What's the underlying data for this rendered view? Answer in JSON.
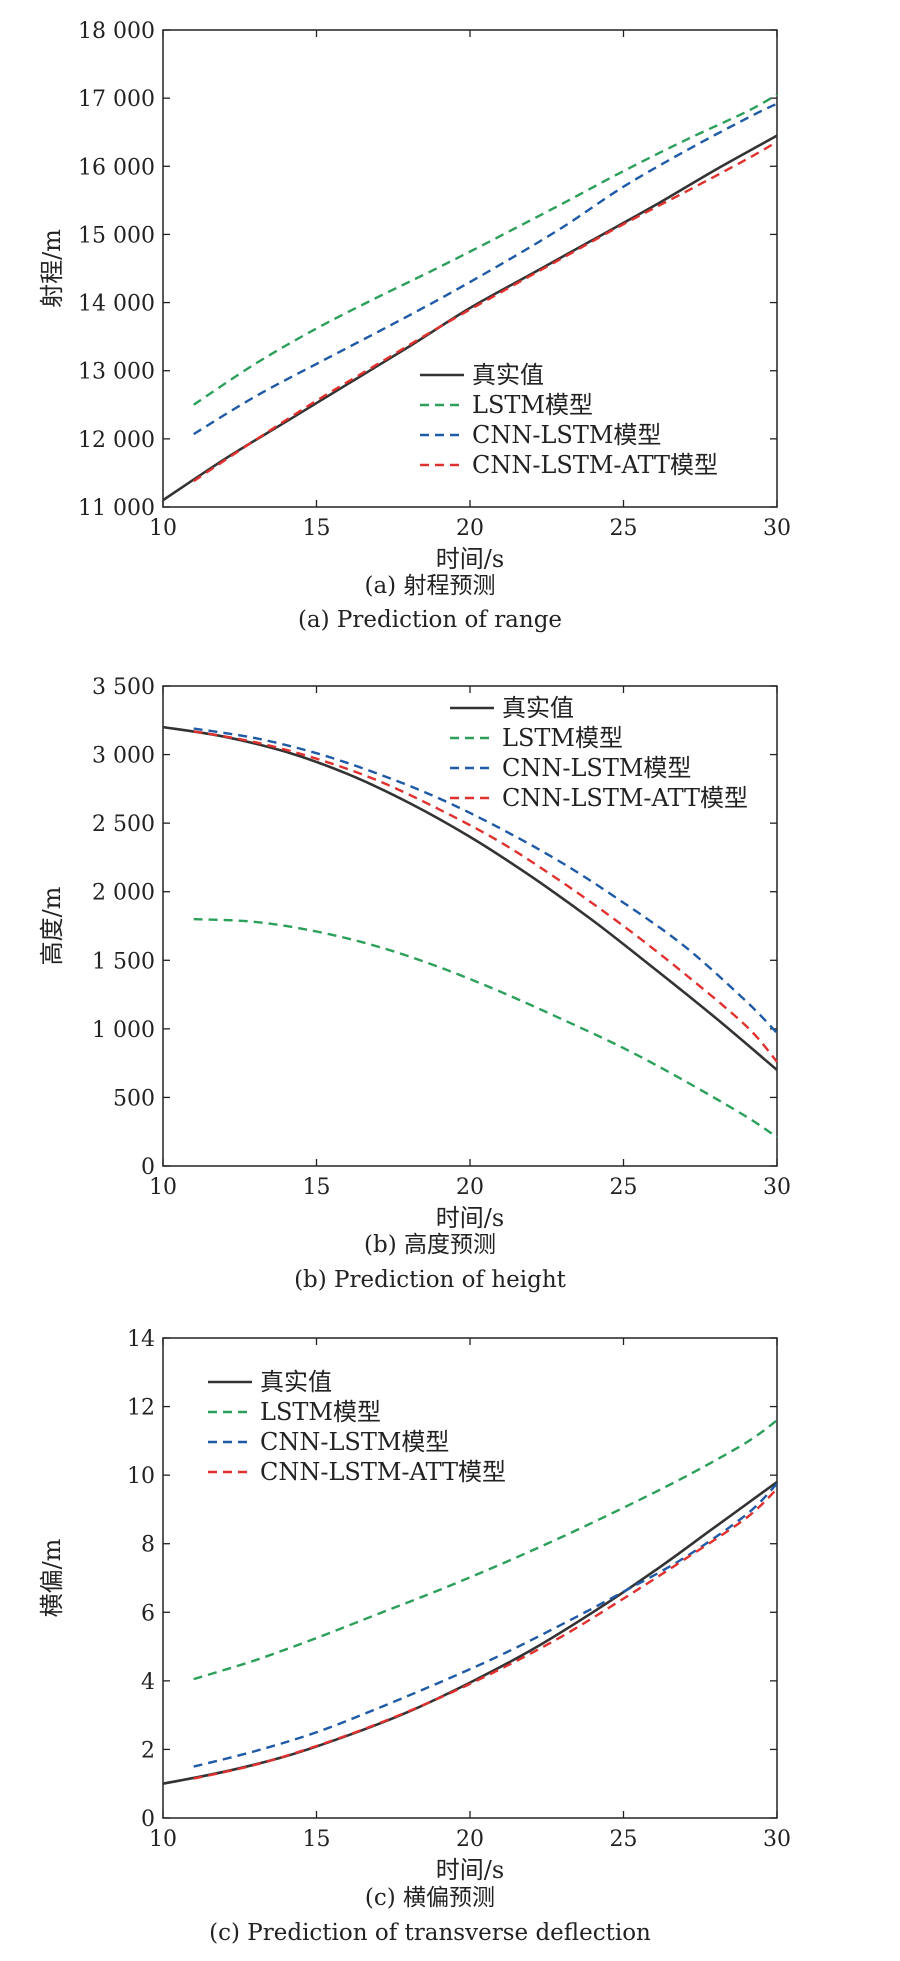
{
  "chart_data": [
    {
      "type": "line",
      "caption_cn": "(a) 射程预测",
      "caption_en": "(a) Prediction of range",
      "xlabel": "时间/s",
      "ylabel": "射程/m",
      "xlim": [
        10,
        30
      ],
      "ylim": [
        11000,
        18000
      ],
      "xticks": [
        10,
        15,
        20,
        25,
        30
      ],
      "xtick_labels": [
        "10",
        "15",
        "20",
        "25",
        "30"
      ],
      "yticks": [
        11000,
        12000,
        13000,
        14000,
        15000,
        16000,
        17000,
        18000
      ],
      "ytick_labels": [
        "11 000",
        "12 000",
        "13 000",
        "14 000",
        "15 000",
        "16 000",
        "17 000",
        "18 000"
      ],
      "legend_position": "lower-right",
      "series": [
        {
          "name": "真实值",
          "color": "#333333",
          "style": "solid",
          "x": [
            10,
            12,
            14,
            16,
            18,
            20,
            22,
            24,
            26,
            28,
            30
          ],
          "y": [
            11100,
            11700,
            12250,
            12800,
            13350,
            13920,
            14420,
            14920,
            15420,
            15950,
            16450
          ]
        },
        {
          "name": "LSTM模型",
          "color": "#2ca05a",
          "style": "dashed",
          "x": [
            11,
            13,
            15,
            17,
            19,
            21,
            23,
            25,
            27,
            29,
            30
          ],
          "y": [
            12500,
            13100,
            13620,
            14080,
            14520,
            14980,
            15450,
            15930,
            16380,
            16800,
            17050
          ]
        },
        {
          "name": "CNN-LSTM模型",
          "color": "#1f5aa6",
          "style": "dashed",
          "x": [
            11,
            13,
            15,
            17,
            19,
            21,
            23,
            25,
            27,
            29,
            30
          ],
          "y": [
            12070,
            12620,
            13100,
            13570,
            14050,
            14560,
            15100,
            15700,
            16220,
            16700,
            16920
          ]
        },
        {
          "name": "CNN-LSTM-ATT模型",
          "color": "#e0312e",
          "style": "dashed",
          "x": [
            11,
            13,
            15,
            17,
            19,
            21,
            23,
            25,
            27,
            29,
            30
          ],
          "y": [
            11380,
            11980,
            12560,
            13100,
            13640,
            14150,
            14650,
            15150,
            15620,
            16100,
            16360
          ]
        }
      ]
    },
    {
      "type": "line",
      "caption_cn": "(b) 高度预测",
      "caption_en": "(b) Prediction of height",
      "xlabel": "时间/s",
      "ylabel": "高度/m",
      "xlim": [
        10,
        30
      ],
      "ylim": [
        0,
        3500
      ],
      "xticks": [
        10,
        15,
        20,
        25,
        30
      ],
      "xtick_labels": [
        "10",
        "15",
        "20",
        "25",
        "30"
      ],
      "yticks": [
        0,
        500,
        1000,
        1500,
        2000,
        2500,
        3000,
        3500
      ],
      "ytick_labels": [
        "0",
        "500",
        "1 000",
        "1 500",
        "2 000",
        "2 500",
        "3 000",
        "3 500"
      ],
      "legend_position": "top-right",
      "series": [
        {
          "name": "真实值",
          "color": "#333333",
          "style": "solid",
          "x": [
            10,
            12,
            14,
            16,
            18,
            20,
            22,
            24,
            26,
            28,
            30
          ],
          "y": [
            3200,
            3130,
            3020,
            2860,
            2650,
            2400,
            2110,
            1790,
            1440,
            1080,
            700
          ]
        },
        {
          "name": "LSTM模型",
          "color": "#2ca05a",
          "style": "dashed",
          "x": [
            11,
            13,
            15,
            17,
            19,
            21,
            23,
            25,
            27,
            29,
            30
          ],
          "y": [
            1800,
            1780,
            1710,
            1600,
            1450,
            1270,
            1070,
            860,
            620,
            360,
            210
          ]
        },
        {
          "name": "CNN-LSTM模型",
          "color": "#1f5aa6",
          "style": "dashed",
          "x": [
            11,
            13,
            15,
            17,
            19,
            21,
            23,
            25,
            27,
            29,
            30
          ],
          "y": [
            3190,
            3120,
            3010,
            2860,
            2680,
            2460,
            2210,
            1920,
            1600,
            1200,
            970
          ]
        },
        {
          "name": "CNN-LSTM-ATT模型",
          "color": "#e0312e",
          "style": "dashed",
          "x": [
            11,
            13,
            15,
            17,
            19,
            21,
            23,
            25,
            27,
            29,
            30
          ],
          "y": [
            3170,
            3090,
            2970,
            2810,
            2600,
            2360,
            2070,
            1750,
            1400,
            1020,
            760
          ]
        }
      ]
    },
    {
      "type": "line",
      "caption_cn": "(c) 横偏预测",
      "caption_en": "(c) Prediction of transverse deflection",
      "xlabel": "时间/s",
      "ylabel": "横偏/m",
      "xlim": [
        10,
        30
      ],
      "ylim": [
        0,
        14
      ],
      "xticks": [
        10,
        15,
        20,
        25,
        30
      ],
      "xtick_labels": [
        "10",
        "15",
        "20",
        "25",
        "30"
      ],
      "yticks": [
        0,
        2,
        4,
        6,
        8,
        10,
        12,
        14
      ],
      "ytick_labels": [
        "0",
        "2",
        "4",
        "6",
        "8",
        "10",
        "12",
        "14"
      ],
      "legend_position": "top-left",
      "series": [
        {
          "name": "真实值",
          "color": "#333333",
          "style": "solid",
          "x": [
            10,
            12,
            14,
            16,
            18,
            20,
            22,
            24,
            26,
            28,
            30
          ],
          "y": [
            1.0,
            1.35,
            1.8,
            2.4,
            3.1,
            3.95,
            4.9,
            6.0,
            7.2,
            8.5,
            9.8
          ]
        },
        {
          "name": "LSTM模型",
          "color": "#2ca05a",
          "style": "dashed",
          "x": [
            11,
            13,
            15,
            17,
            19,
            21,
            23,
            25,
            27,
            29,
            30
          ],
          "y": [
            4.05,
            4.6,
            5.25,
            5.95,
            6.65,
            7.4,
            8.2,
            9.05,
            9.95,
            10.95,
            11.6
          ]
        },
        {
          "name": "CNN-LSTM模型",
          "color": "#1f5aa6",
          "style": "dashed",
          "x": [
            11,
            13,
            15,
            17,
            19,
            21,
            23,
            25,
            27,
            29,
            30
          ],
          "y": [
            1.5,
            1.95,
            2.5,
            3.2,
            3.95,
            4.75,
            5.65,
            6.6,
            7.6,
            8.85,
            9.75
          ]
        },
        {
          "name": "CNN-LSTM-ATT模型",
          "color": "#e0312e",
          "style": "dashed",
          "x": [
            11,
            13,
            15,
            17,
            19,
            21,
            23,
            25,
            27,
            29,
            30
          ],
          "y": [
            1.15,
            1.55,
            2.1,
            2.75,
            3.5,
            4.35,
            5.3,
            6.4,
            7.55,
            8.75,
            9.6
          ]
        }
      ]
    }
  ]
}
